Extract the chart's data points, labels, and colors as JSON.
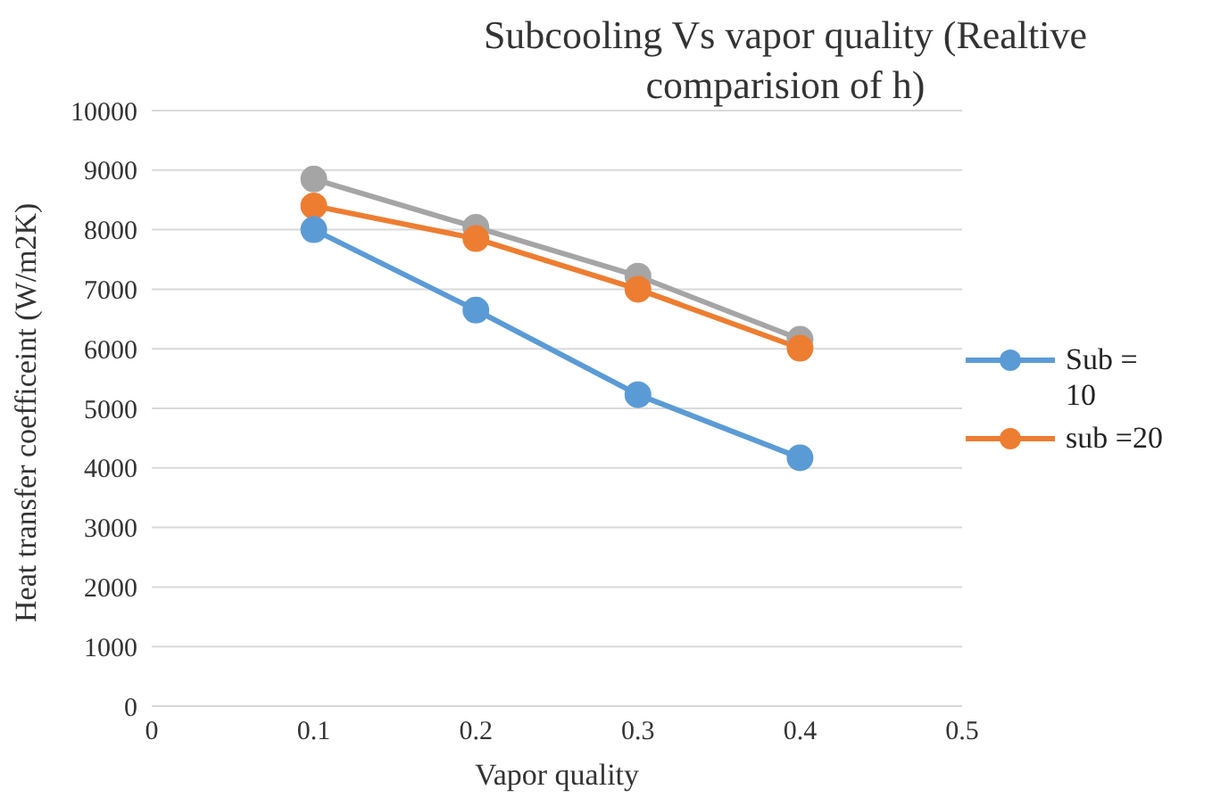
{
  "chart_data": {
    "type": "line",
    "title": "Subcooling Vs vapor quality (Realtive comparision of h)",
    "xlabel": "Vapor quality",
    "ylabel": "Heat transfer coefficeint (W/m2K)",
    "x": [
      0.1,
      0.2,
      0.3,
      0.4
    ],
    "series": [
      {
        "name": "Sub = 10",
        "color": "#5b9bd5",
        "values": [
          8000,
          6650,
          5230,
          4170
        ]
      },
      {
        "name": "sub =20",
        "color": "#ed7d31",
        "values": [
          8400,
          7850,
          7000,
          6010
        ]
      },
      {
        "color": "#a5a5a5",
        "values": [
          8850,
          8040,
          7220,
          6160
        ]
      }
    ],
    "xlim": [
      0,
      0.5
    ],
    "xticks": [
      0,
      0.1,
      0.2,
      0.3,
      0.4,
      0.5
    ],
    "ylim": [
      0,
      10000
    ],
    "yticks": [
      0,
      1000,
      2000,
      3000,
      4000,
      5000,
      6000,
      7000,
      8000,
      9000,
      10000
    ],
    "grid": "y",
    "legend": "right",
    "marker": "circle",
    "line_style": "solid"
  }
}
